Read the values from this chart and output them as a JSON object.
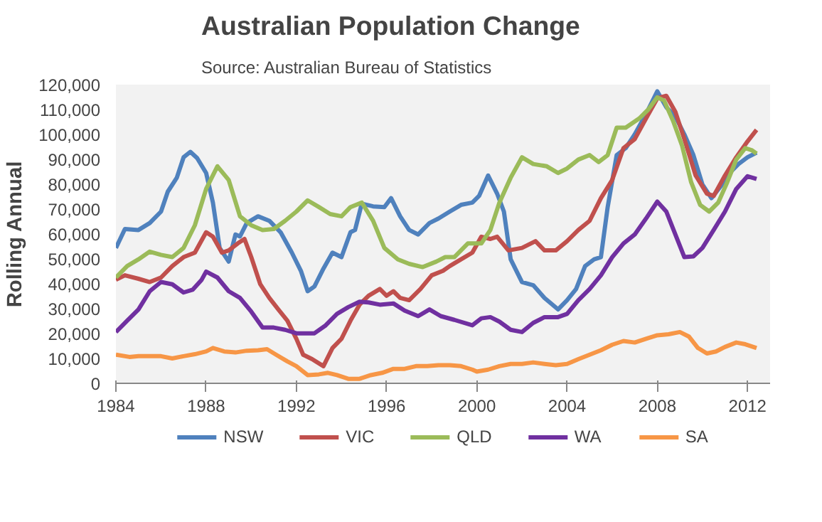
{
  "chart_data": {
    "type": "line",
    "title": "Australian Population Change",
    "annotations": [
      "Source:  Australian Bureau of Statistics"
    ],
    "ylabel": "Rolling Annual",
    "xlim": [
      1984,
      2013
    ],
    "xticks": [
      1984,
      1988,
      1992,
      1996,
      2000,
      2004,
      2008,
      2012
    ],
    "ylim": [
      0,
      120000
    ],
    "yticks": [
      {
        "value": 0,
        "label": "0"
      },
      {
        "value": 10000,
        "label": "10,000"
      },
      {
        "value": 20000,
        "label": "20,000"
      },
      {
        "value": 30000,
        "label": "30,000"
      },
      {
        "value": 40000,
        "label": "40,000"
      },
      {
        "value": 50000,
        "label": "50,000"
      },
      {
        "value": 60000,
        "label": "60,000"
      },
      {
        "value": 70000,
        "label": "70,000"
      },
      {
        "value": 80000,
        "label": "80,000"
      },
      {
        "value": 90000,
        "label": "90,000"
      },
      {
        "value": 100000,
        "label": "100,000"
      },
      {
        "value": 110000,
        "label": "110,000"
      },
      {
        "value": 120000,
        "label": "120,000"
      }
    ],
    "grid": false,
    "legend": "bottom",
    "marker": "none",
    "line_style": "solid",
    "series": [
      {
        "name": "NSW",
        "color": "#4f81bd",
        "x": [
          1984,
          1984.4,
          1985,
          1985.5,
          1986,
          1986.3,
          1986.7,
          1987,
          1987.3,
          1987.6,
          1988,
          1988.3,
          1988.6,
          1989,
          1989.3,
          1989.5,
          1989.8,
          1990.3,
          1990.8,
          1991.3,
          1991.8,
          1992.2,
          1992.5,
          1992.8,
          1993.2,
          1993.6,
          1994,
          1994.4,
          1994.6,
          1994.9,
          1995.4,
          1995.9,
          1996.2,
          1996.6,
          1997,
          1997.4,
          1997.9,
          1998.3,
          1998.8,
          1999.3,
          1999.8,
          2000.1,
          2000.5,
          2000.9,
          2001.2,
          2001.5,
          2002,
          2002.5,
          2003,
          2003.6,
          2004,
          2004.4,
          2004.8,
          2005.2,
          2005.5,
          2005.8,
          2006.2,
          2006.6,
          2007,
          2007.5,
          2008,
          2008.4,
          2008.8,
          2009.2,
          2009.6,
          2010,
          2010.4,
          2010.8,
          2011.2,
          2011.6,
          2012,
          2012.4
        ],
        "values": [
          54400,
          62000,
          61600,
          64400,
          69000,
          77000,
          82600,
          90800,
          93000,
          90500,
          84500,
          72600,
          54400,
          48900,
          59800,
          59000,
          64400,
          67100,
          65300,
          60700,
          52500,
          45200,
          37000,
          38900,
          46100,
          52500,
          50700,
          60700,
          61600,
          72200,
          71100,
          70800,
          74400,
          67100,
          61600,
          59800,
          64400,
          66200,
          69000,
          71700,
          72600,
          75300,
          83500,
          76200,
          69000,
          49800,
          40700,
          39400,
          34300,
          29700,
          33400,
          37900,
          47100,
          49800,
          50700,
          70800,
          91700,
          94500,
          100000,
          108200,
          117300,
          110900,
          107200,
          100000,
          91700,
          79900,
          74400,
          79000,
          84500,
          88100,
          90800,
          92700
        ]
      },
      {
        "name": "VIC",
        "color": "#c0504d",
        "x": [
          1984,
          1984.4,
          1985,
          1985.5,
          1986,
          1986.5,
          1987,
          1987.5,
          1988,
          1988.3,
          1988.7,
          1989,
          1989.4,
          1989.7,
          1990,
          1990.4,
          1990.8,
          1991.2,
          1991.6,
          1992,
          1992.3,
          1992.7,
          1993.2,
          1993.6,
          1994,
          1994.4,
          1994.8,
          1995.2,
          1995.7,
          1996,
          1996.3,
          1996.6,
          1997,
          1997.5,
          1998,
          1998.5,
          1998.8,
          1999.3,
          1999.8,
          2000.2,
          2000.6,
          2000.9,
          2001.4,
          2002,
          2002.6,
          2003,
          2003.5,
          2004,
          2004.5,
          2005,
          2005.5,
          2006,
          2006.5,
          2007,
          2007.5,
          2008,
          2008.4,
          2008.8,
          2009.2,
          2009.7,
          2010.2,
          2010.5,
          2011,
          2011.5,
          2012,
          2012.4
        ],
        "values": [
          41600,
          43400,
          42000,
          40700,
          42500,
          47100,
          50700,
          52500,
          60700,
          58900,
          52500,
          53400,
          56200,
          58000,
          50700,
          39800,
          34300,
          29700,
          25200,
          17900,
          11500,
          9700,
          6900,
          14200,
          17900,
          25200,
          31600,
          35200,
          37900,
          35200,
          37000,
          34300,
          33400,
          37900,
          43400,
          45200,
          47100,
          49800,
          52500,
          58900,
          58000,
          58900,
          53400,
          54400,
          57100,
          53400,
          53400,
          57100,
          61600,
          65300,
          74400,
          81700,
          94500,
          98100,
          106400,
          114500,
          115500,
          109100,
          98100,
          83500,
          76200,
          75300,
          83500,
          90800,
          97200,
          101800
        ]
      },
      {
        "name": "QLD",
        "color": "#9bbb59",
        "x": [
          1984,
          1984.5,
          1985,
          1985.5,
          1986,
          1986.5,
          1987,
          1987.5,
          1988,
          1988.5,
          1989,
          1989.5,
          1990,
          1990.5,
          1991,
          1991.5,
          1992,
          1992.5,
          1993,
          1993.5,
          1994,
          1994.4,
          1994.9,
          1995.4,
          1995.9,
          1996.5,
          1997,
          1997.6,
          1998.2,
          1998.6,
          1999,
          1999.6,
          2000.2,
          2000.6,
          2001,
          2001.5,
          2002,
          2002.5,
          2003.1,
          2003.6,
          2004,
          2004.5,
          2005,
          2005.4,
          2005.8,
          2006.2,
          2006.6,
          2007.2,
          2007.6,
          2008,
          2008.3,
          2008.7,
          2009.1,
          2009.5,
          2009.9,
          2010.3,
          2010.7,
          2011.1,
          2011.5,
          2011.9,
          2012.2,
          2012.4
        ],
        "values": [
          42500,
          47100,
          49800,
          52900,
          51600,
          50700,
          54400,
          63500,
          78100,
          87200,
          81700,
          67100,
          63500,
          61600,
          62000,
          65300,
          69000,
          73500,
          70800,
          68000,
          67100,
          70800,
          72600,
          65300,
          54400,
          49800,
          48000,
          46700,
          48900,
          50700,
          50700,
          56200,
          56200,
          61600,
          72600,
          82600,
          90800,
          88100,
          87200,
          84500,
          86300,
          89900,
          91700,
          88900,
          91700,
          102700,
          102700,
          106400,
          110000,
          114900,
          113600,
          105400,
          95400,
          80800,
          71700,
          69000,
          72600,
          80800,
          89900,
          94500,
          93600,
          92300
        ]
      },
      {
        "name": "WA",
        "color": "#7030a0",
        "x": [
          1984,
          1984.5,
          1985,
          1985.5,
          1986,
          1986.5,
          1987,
          1987.4,
          1987.8,
          1988,
          1988.5,
          1989,
          1989.5,
          1990,
          1990.5,
          1991,
          1991.5,
          1992,
          1992.8,
          1993.3,
          1993.8,
          1994.3,
          1994.8,
          1995.2,
          1995.7,
          1996.3,
          1996.8,
          1997.4,
          1997.9,
          1998.4,
          1999,
          1999.8,
          2000.2,
          2000.6,
          2001,
          2001.5,
          2002,
          2002.5,
          2003,
          2003.6,
          2004,
          2004.5,
          2005,
          2005.5,
          2006,
          2006.5,
          2007,
          2007.5,
          2008,
          2008.4,
          2008.8,
          2009.2,
          2009.6,
          2010,
          2010.5,
          2011,
          2011.5,
          2012,
          2012.4
        ],
        "values": [
          20600,
          25200,
          29700,
          37000,
          40700,
          39800,
          36500,
          37600,
          41600,
          44900,
          42500,
          37000,
          34300,
          28800,
          22400,
          22400,
          21500,
          20100,
          20100,
          23300,
          27900,
          30600,
          32800,
          32500,
          31600,
          32100,
          29200,
          27000,
          29700,
          27000,
          25500,
          23300,
          26100,
          26600,
          24800,
          21500,
          20600,
          24300,
          26600,
          26600,
          27900,
          33400,
          37900,
          43400,
          50700,
          56200,
          59800,
          66200,
          73000,
          69000,
          59800,
          50700,
          51000,
          54400,
          61600,
          69000,
          78100,
          83200,
          82100
        ]
      },
      {
        "name": "SA",
        "color": "#f79646",
        "x": [
          1984,
          1984.6,
          1985,
          1985.5,
          1986,
          1986.5,
          1987,
          1987.5,
          1988,
          1988.3,
          1988.8,
          1989.3,
          1989.8,
          1990.3,
          1990.7,
          1991.1,
          1991.6,
          1992,
          1992.5,
          1993,
          1993.4,
          1993.8,
          1994.3,
          1994.8,
          1995.3,
          1995.8,
          1996.3,
          1996.8,
          1997.3,
          1997.8,
          1998.3,
          1998.8,
          1999.3,
          1999.8,
          2000,
          2000.5,
          2001,
          2001.5,
          2002,
          2002.5,
          2003,
          2003.5,
          2004,
          2004.5,
          2005,
          2005.5,
          2006,
          2006.5,
          2007,
          2007.5,
          2008,
          2008.5,
          2009,
          2009.4,
          2009.8,
          2010.2,
          2010.6,
          2011,
          2011.5,
          2011.9,
          2012.4
        ],
        "values": [
          11500,
          10600,
          10900,
          10900,
          10900,
          10000,
          10900,
          11700,
          12800,
          14200,
          12800,
          12400,
          13100,
          13300,
          13700,
          11500,
          8800,
          6900,
          3300,
          3600,
          4200,
          3300,
          1800,
          1800,
          3300,
          4200,
          5800,
          5800,
          6900,
          6900,
          7300,
          7300,
          6900,
          5500,
          4700,
          5500,
          6900,
          7800,
          7800,
          8400,
          7800,
          7300,
          7800,
          9700,
          11500,
          13300,
          15500,
          17000,
          16400,
          17900,
          19300,
          19700,
          20600,
          18800,
          14200,
          12000,
          12800,
          14600,
          16400,
          15700,
          14200
        ]
      }
    ]
  }
}
